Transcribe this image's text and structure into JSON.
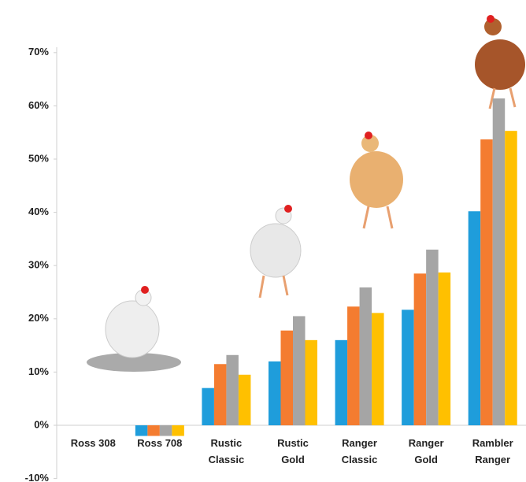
{
  "chart_data": {
    "type": "bar",
    "categories": [
      "Ross 308",
      "Ross 708",
      "Rustic Classic",
      "Rustic Gold",
      "Ranger Classic",
      "Ranger Gold",
      "Rambler Ranger"
    ],
    "series": [
      {
        "color": "#1f9ddb",
        "values": [
          0,
          -2,
          7,
          12,
          16,
          21.7,
          40.2
        ]
      },
      {
        "color": "#f47c30",
        "values": [
          0,
          -2,
          11.5,
          17.8,
          22.3,
          28.5,
          53.7
        ]
      },
      {
        "color": "#a5a5a5",
        "values": [
          0,
          -2,
          13.2,
          20.5,
          25.9,
          33,
          61.4
        ]
      },
      {
        "color": "#ffc000",
        "values": [
          0,
          -2,
          9.5,
          16,
          21.1,
          28.7,
          55.3
        ]
      }
    ],
    "ylim": [
      -10,
      72
    ],
    "yticks": [
      {
        "value": -10,
        "label": "-10%"
      },
      {
        "value": 0,
        "label": "0%"
      },
      {
        "value": 10,
        "label": "10%"
      },
      {
        "value": 20,
        "label": "20%"
      },
      {
        "value": 30,
        "label": "30%"
      },
      {
        "value": 40,
        "label": "40%"
      },
      {
        "value": 50,
        "label": "50%"
      },
      {
        "value": 60,
        "label": "60%"
      },
      {
        "value": 70,
        "label": "70%"
      }
    ],
    "grid": false
  }
}
